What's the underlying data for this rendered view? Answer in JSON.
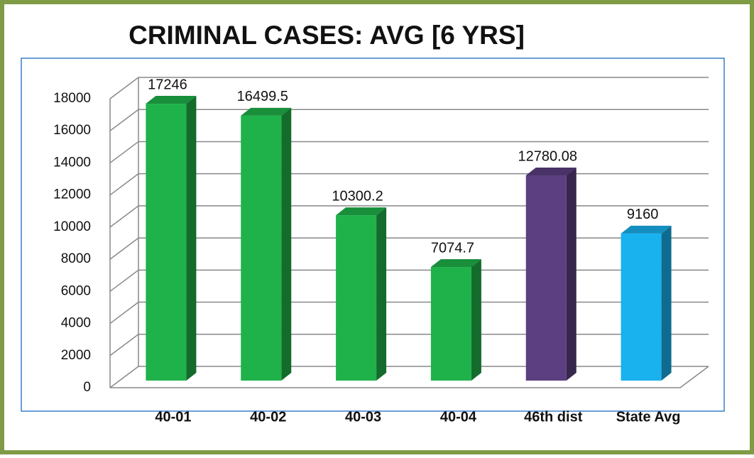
{
  "chart_data": {
    "type": "bar3d",
    "title": "CRIMINAL CASES: AVG  [6 YRS]",
    "categories": [
      "40-01",
      "40-02",
      "40-03",
      "40-04",
      "46th dist",
      "State Avg"
    ],
    "values": [
      17246,
      16499.5,
      10300.2,
      7074.7,
      12780.08,
      9160
    ],
    "colors": [
      "#1fb24a",
      "#1fb24a",
      "#1fb24a",
      "#1fb24a",
      "#5b3f80",
      "#19b2ee"
    ],
    "ylim": [
      0,
      18000
    ],
    "yticks": [
      0,
      2000,
      4000,
      6000,
      8000,
      10000,
      12000,
      14000,
      16000,
      18000
    ],
    "grid": true
  }
}
